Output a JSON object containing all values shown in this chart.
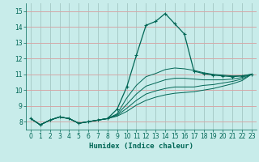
{
  "xlabel": "Humidex (Indice chaleur)",
  "bg_color": "#c8ecea",
  "grid_color_major": "#d4a0a0",
  "grid_color_minor": "#b8d8d4",
  "line_color": "#006655",
  "xlim": [
    -0.5,
    23.5
  ],
  "ylim": [
    7.5,
    15.5
  ],
  "yticks": [
    8,
    9,
    10,
    11,
    12,
    13,
    14,
    15
  ],
  "xticks": [
    0,
    1,
    2,
    3,
    4,
    5,
    6,
    7,
    8,
    9,
    10,
    11,
    12,
    13,
    14,
    15,
    16,
    17,
    18,
    19,
    20,
    21,
    22,
    23
  ],
  "curves": [
    [
      8.2,
      7.8,
      8.1,
      8.3,
      8.2,
      7.9,
      8.0,
      8.1,
      8.2,
      8.8,
      10.2,
      12.2,
      14.1,
      14.35,
      14.85,
      14.2,
      13.55,
      11.2,
      11.05,
      10.95,
      10.9,
      10.85,
      10.9,
      11.0
    ],
    [
      8.2,
      7.8,
      8.1,
      8.3,
      8.2,
      7.9,
      8.0,
      8.1,
      8.2,
      8.5,
      9.5,
      10.3,
      10.85,
      11.05,
      11.3,
      11.4,
      11.35,
      11.25,
      11.1,
      11.0,
      10.95,
      10.9,
      10.9,
      11.0
    ],
    [
      8.2,
      7.8,
      8.1,
      8.3,
      8.2,
      7.9,
      8.0,
      8.1,
      8.2,
      8.45,
      9.1,
      9.75,
      10.25,
      10.45,
      10.65,
      10.75,
      10.75,
      10.7,
      10.65,
      10.65,
      10.65,
      10.7,
      10.8,
      11.0
    ],
    [
      8.2,
      7.8,
      8.1,
      8.3,
      8.2,
      7.9,
      8.0,
      8.1,
      8.2,
      8.4,
      8.85,
      9.35,
      9.75,
      9.95,
      10.1,
      10.2,
      10.2,
      10.2,
      10.3,
      10.35,
      10.45,
      10.55,
      10.7,
      11.0
    ],
    [
      8.2,
      7.8,
      8.1,
      8.3,
      8.2,
      7.9,
      8.0,
      8.1,
      8.2,
      8.35,
      8.65,
      9.05,
      9.35,
      9.55,
      9.7,
      9.8,
      9.85,
      9.9,
      10.0,
      10.1,
      10.25,
      10.4,
      10.6,
      11.0
    ]
  ],
  "xlabel_fontsize": 6.5,
  "tick_fontsize": 5.5
}
